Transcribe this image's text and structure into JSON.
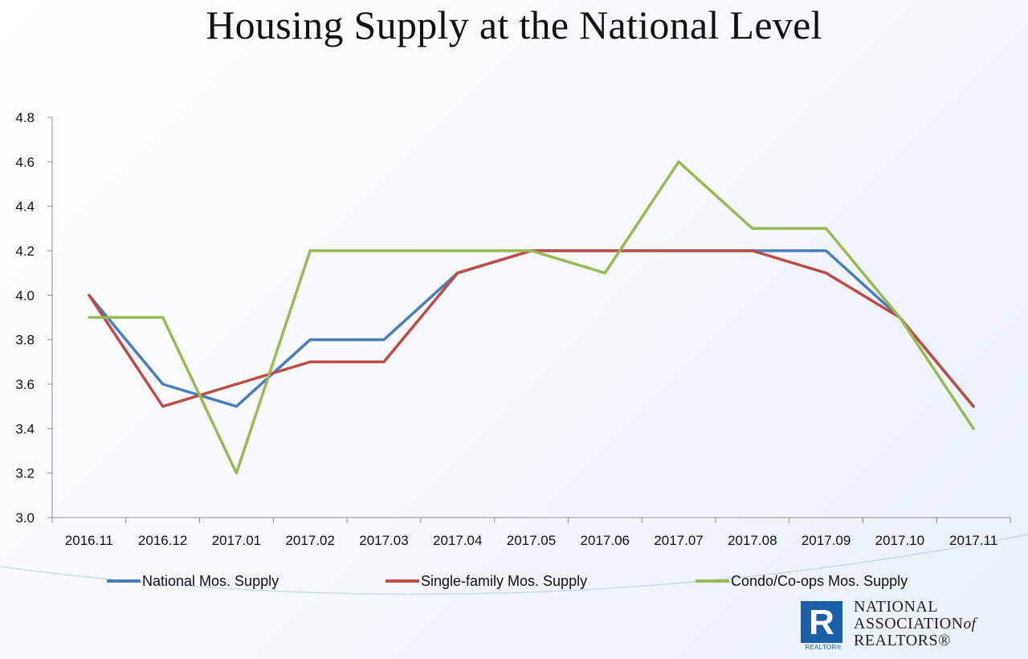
{
  "title": "Housing Supply at the National Level",
  "chart_data": {
    "type": "line",
    "title": "Housing Supply at the National Level",
    "categories": [
      "2016.11",
      "2016.12",
      "2017.01",
      "2017.02",
      "2017.03",
      "2017.04",
      "2017.05",
      "2017.06",
      "2017.07",
      "2017.08",
      "2017.09",
      "2017.10",
      "2017.11"
    ],
    "ylim": [
      3.0,
      4.8
    ],
    "yticks": [
      "3.0",
      "3.2",
      "3.4",
      "3.6",
      "3.8",
      "4.0",
      "4.2",
      "4.4",
      "4.6",
      "4.8"
    ],
    "grid": false,
    "legend_position": "bottom",
    "series": [
      {
        "name": "National Mos. Supply",
        "color": "#4a7ebb",
        "values": [
          4.0,
          3.6,
          3.5,
          3.8,
          3.8,
          4.1,
          4.2,
          4.2,
          4.2,
          4.2,
          4.2,
          3.9,
          3.5
        ]
      },
      {
        "name": "Single-family Mos. Supply",
        "color": "#be4b48",
        "values": [
          4.0,
          3.5,
          3.6,
          3.7,
          3.7,
          4.1,
          4.2,
          4.2,
          4.2,
          4.2,
          4.1,
          3.9,
          3.5
        ]
      },
      {
        "name": "Condo/Co-ops Mos. Supply",
        "color": "#98b954",
        "values": [
          3.9,
          3.9,
          3.2,
          4.2,
          4.2,
          4.2,
          4.2,
          4.1,
          4.6,
          4.3,
          4.3,
          3.9,
          3.4
        ]
      }
    ]
  },
  "logo": {
    "mark": "R",
    "sub": "REALTOR®",
    "line1": "NATIONAL",
    "line2": "ASSOCIATION",
    "line2_of": "of",
    "line3": "REALTORS®"
  }
}
